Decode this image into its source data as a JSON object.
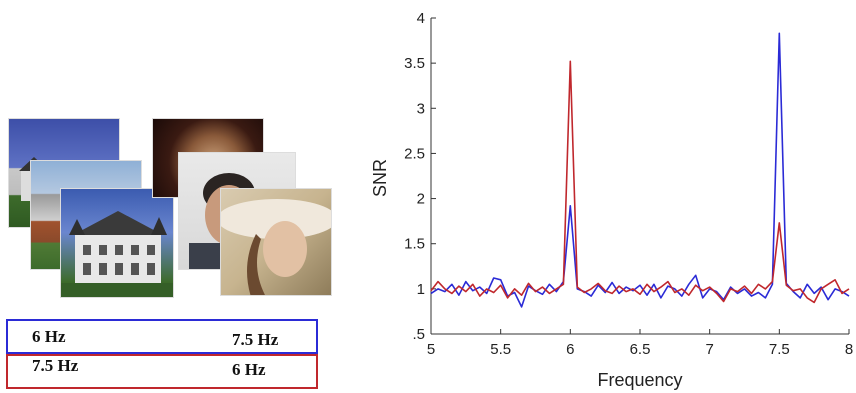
{
  "stimuli": {
    "conditions": [
      {
        "left_rate": "6 Hz",
        "right_rate": "7.5 Hz",
        "color": "#2b2bd6"
      },
      {
        "left_rate": "7.5 Hz",
        "right_rate": "6 Hz",
        "color": "#c0282d"
      }
    ],
    "left_images": "house-photos",
    "right_images": "face-photos"
  },
  "chart_data": {
    "type": "line",
    "xlabel": "Frequency",
    "ylabel": "SNR",
    "xlim": [
      5,
      8
    ],
    "ylim": [
      0.5,
      4
    ],
    "xticks": [
      5,
      5.5,
      6,
      6.5,
      7,
      7.5,
      8
    ],
    "xtick_labels": [
      "5",
      "5.5",
      "6",
      "6.5",
      "7",
      "7.5",
      "8"
    ],
    "yticks": [
      0.5,
      1,
      1.5,
      2,
      2.5,
      3,
      3.5,
      4
    ],
    "ytick_labels": [
      ".5",
      "1",
      "1.5",
      "2",
      "2.5",
      "3",
      "3.5",
      "4"
    ],
    "grid": false,
    "series": [
      {
        "color": "#2b2bd6",
        "points": [
          [
            5.0,
            0.95
          ],
          [
            5.05,
            1.0
          ],
          [
            5.1,
            0.97
          ],
          [
            5.15,
            1.05
          ],
          [
            5.2,
            0.93
          ],
          [
            5.25,
            1.08
          ],
          [
            5.3,
            0.98
          ],
          [
            5.35,
            1.02
          ],
          [
            5.4,
            0.95
          ],
          [
            5.45,
            1.12
          ],
          [
            5.5,
            1.1
          ],
          [
            5.55,
            0.92
          ],
          [
            5.6,
            0.96
          ],
          [
            5.65,
            0.8
          ],
          [
            5.7,
            1.03
          ],
          [
            5.75,
            0.98
          ],
          [
            5.8,
            0.94
          ],
          [
            5.85,
            1.05
          ],
          [
            5.9,
            0.97
          ],
          [
            5.95,
            1.08
          ],
          [
            6.0,
            1.92
          ],
          [
            6.05,
            1.0
          ],
          [
            6.1,
            0.97
          ],
          [
            6.15,
            0.92
          ],
          [
            6.2,
            1.04
          ],
          [
            6.25,
            0.96
          ],
          [
            6.3,
            1.07
          ],
          [
            6.35,
            0.95
          ],
          [
            6.4,
            1.02
          ],
          [
            6.45,
            0.98
          ],
          [
            6.5,
            1.04
          ],
          [
            6.55,
            0.93
          ],
          [
            6.6,
            1.05
          ],
          [
            6.65,
            0.9
          ],
          [
            6.7,
            1.03
          ],
          [
            6.75,
            1.0
          ],
          [
            6.8,
            0.92
          ],
          [
            6.85,
            1.05
          ],
          [
            6.9,
            1.15
          ],
          [
            6.95,
            0.9
          ],
          [
            7.0,
            1.0
          ],
          [
            7.05,
            0.97
          ],
          [
            7.1,
            0.88
          ],
          [
            7.15,
            1.02
          ],
          [
            7.2,
            0.95
          ],
          [
            7.25,
            1.0
          ],
          [
            7.3,
            0.92
          ],
          [
            7.35,
            0.96
          ],
          [
            7.4,
            0.9
          ],
          [
            7.45,
            1.05
          ],
          [
            7.5,
            3.83
          ],
          [
            7.55,
            1.06
          ],
          [
            7.6,
            0.97
          ],
          [
            7.65,
            0.9
          ],
          [
            7.7,
            1.05
          ],
          [
            7.75,
            0.95
          ],
          [
            7.8,
            1.02
          ],
          [
            7.85,
            0.88
          ],
          [
            7.9,
            1.0
          ],
          [
            7.95,
            0.97
          ],
          [
            8.0,
            0.92
          ]
        ]
      },
      {
        "color": "#c0282d",
        "points": [
          [
            5.0,
            0.98
          ],
          [
            5.05,
            1.08
          ],
          [
            5.1,
            1.0
          ],
          [
            5.15,
            0.95
          ],
          [
            5.2,
            1.03
          ],
          [
            5.25,
            0.97
          ],
          [
            5.3,
            1.05
          ],
          [
            5.35,
            0.92
          ],
          [
            5.4,
            1.0
          ],
          [
            5.45,
            0.96
          ],
          [
            5.5,
            1.04
          ],
          [
            5.55,
            0.9
          ],
          [
            5.6,
            1.0
          ],
          [
            5.65,
            0.93
          ],
          [
            5.7,
            1.06
          ],
          [
            5.75,
            0.97
          ],
          [
            5.8,
            1.02
          ],
          [
            5.85,
            0.95
          ],
          [
            5.9,
            1.0
          ],
          [
            5.95,
            1.05
          ],
          [
            6.0,
            3.52
          ],
          [
            6.05,
            1.02
          ],
          [
            6.1,
            0.96
          ],
          [
            6.15,
            1.0
          ],
          [
            6.2,
            1.06
          ],
          [
            6.25,
            0.98
          ],
          [
            6.3,
            0.95
          ],
          [
            6.35,
            1.03
          ],
          [
            6.4,
            0.97
          ],
          [
            6.45,
            1.0
          ],
          [
            6.5,
            0.94
          ],
          [
            6.55,
            1.05
          ],
          [
            6.6,
            0.97
          ],
          [
            6.65,
            1.02
          ],
          [
            6.7,
            1.08
          ],
          [
            6.75,
            0.96
          ],
          [
            6.8,
            1.0
          ],
          [
            6.85,
            0.93
          ],
          [
            6.9,
            1.04
          ],
          [
            6.95,
            0.98
          ],
          [
            7.0,
            1.02
          ],
          [
            7.05,
            0.95
          ],
          [
            7.1,
            0.86
          ],
          [
            7.15,
            1.0
          ],
          [
            7.2,
            0.97
          ],
          [
            7.25,
            1.03
          ],
          [
            7.3,
            0.95
          ],
          [
            7.35,
            1.05
          ],
          [
            7.4,
            1.0
          ],
          [
            7.45,
            1.08
          ],
          [
            7.5,
            1.73
          ],
          [
            7.55,
            1.04
          ],
          [
            7.6,
            0.98
          ],
          [
            7.65,
            1.0
          ],
          [
            7.7,
            0.9
          ],
          [
            7.75,
            0.85
          ],
          [
            7.8,
            1.0
          ],
          [
            7.85,
            1.05
          ],
          [
            7.9,
            1.1
          ],
          [
            7.95,
            0.95
          ],
          [
            8.0,
            1.0
          ]
        ]
      }
    ]
  }
}
